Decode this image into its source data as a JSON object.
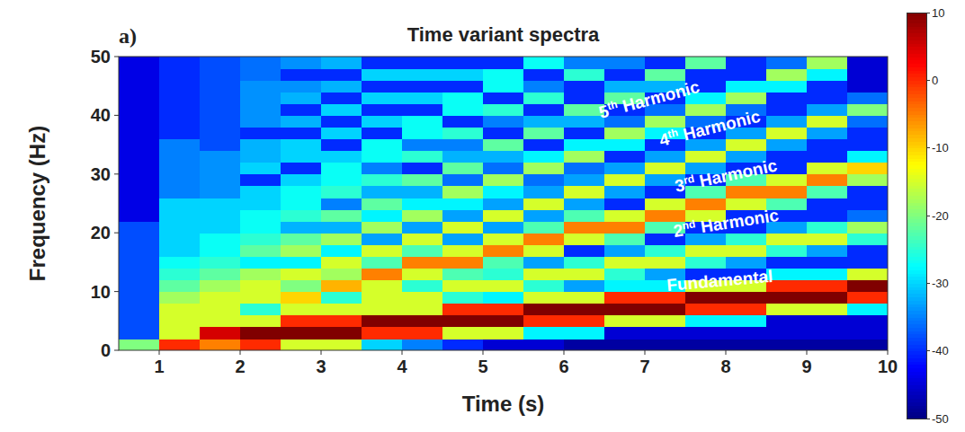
{
  "chart_data": {
    "type": "heatmap",
    "title": "Time variant spectra",
    "panel_label": "a)",
    "x_label": "Time (s)",
    "y_label": "Frequency (Hz)",
    "xlim": [
      0.5,
      10
    ],
    "ylim": [
      0,
      50
    ],
    "xticks": [
      1,
      2,
      3,
      4,
      5,
      6,
      7,
      8,
      9,
      10
    ],
    "yticks": [
      0,
      10,
      20,
      30,
      40,
      50
    ],
    "grid": false,
    "annotations": [
      "5th Harmonic",
      "4th Harmonic",
      "3rd Harmonic",
      "2nd Harmonic",
      "Fundamental"
    ],
    "x_bins": [
      0.5,
      1,
      1.5,
      2,
      2.5,
      3,
      3.5,
      4,
      4.5,
      5,
      5.5,
      6,
      6.5,
      7,
      7.5,
      8,
      8.5,
      9,
      9.5,
      10
    ],
    "y_bins": [
      0,
      2,
      4,
      6,
      8,
      10,
      12,
      14,
      16,
      18,
      20,
      22,
      24,
      26,
      28,
      30,
      32,
      34,
      36,
      38,
      40,
      42,
      44,
      46,
      48,
      50
    ],
    "cells": [
      [
        -20,
        -38,
        -38,
        -38,
        -38,
        -38,
        -38,
        -38,
        -38,
        -38,
        -38,
        -44,
        -44,
        -44,
        -44,
        -44,
        -44,
        -44,
        -44,
        -44,
        -44,
        -44,
        -44,
        -44,
        -44
      ],
      [
        0,
        -15,
        -15,
        -15,
        -18,
        -22,
        -25,
        -27,
        -30,
        -30,
        -30,
        -30,
        -30,
        -35,
        -35,
        -35,
        -35,
        -35,
        -40,
        -40,
        -40,
        -40,
        -40,
        -40,
        -40
      ],
      [
        -5,
        5,
        -15,
        -15,
        -15,
        -18,
        -22,
        -25,
        -27,
        -27,
        -30,
        -30,
        -30,
        -34,
        -34,
        -34,
        -34,
        -38,
        -38,
        -38,
        -38,
        -38,
        -38,
        -38,
        -38
      ],
      [
        0,
        10,
        -15,
        -25,
        -15,
        -15,
        -18,
        -28,
        -22,
        -25,
        -27,
        -27,
        -30,
        -30,
        -40,
        -30,
        -32,
        -32,
        -40,
        -34,
        -34,
        -34,
        -34,
        -36,
        -36
      ],
      [
        -15,
        10,
        0,
        -15,
        -10,
        -20,
        -15,
        -28,
        -18,
        -22,
        -32,
        -25,
        -27,
        -27,
        -30,
        -40,
        -30,
        -30,
        -40,
        -32,
        -40,
        -32,
        -34,
        -40,
        -34
      ],
      [
        -15,
        10,
        0,
        -15,
        -25,
        -8,
        -18,
        -15,
        -28,
        -18,
        -32,
        -22,
        -35,
        -25,
        -27,
        -27,
        -30,
        -40,
        -30,
        -40,
        -30,
        -40,
        -32,
        -40,
        -32
      ],
      [
        -30,
        0,
        10,
        -15,
        -15,
        -15,
        -5,
        -23,
        -15,
        -33,
        -18,
        -28,
        -22,
        -32,
        -25,
        -35,
        -27,
        -27,
        -40,
        -30,
        -40,
        -30,
        -40,
        -30,
        -40
      ],
      [
        -35,
        0,
        10,
        -15,
        -15,
        -25,
        -15,
        -5,
        -23,
        -15,
        -33,
        -18,
        -28,
        -32,
        -22,
        -40,
        -25,
        -35,
        -27,
        -27,
        -40,
        -30,
        -40,
        -30,
        -40
      ],
      [
        -40,
        -15,
        10,
        0,
        -25,
        -15,
        -23,
        -5,
        -15,
        -33,
        -15,
        -33,
        -28,
        -18,
        -36,
        -22,
        -32,
        -35,
        -25,
        -40,
        -27,
        -27,
        -40,
        -30,
        -40
      ],
      [
        -45,
        -15,
        10,
        0,
        -28,
        -15,
        -25,
        -23,
        -5,
        -15,
        -33,
        -15,
        -33,
        -28,
        -18,
        -36,
        -32,
        -22,
        -40,
        -35,
        -25,
        -40,
        -27,
        -27,
        -40
      ],
      [
        -45,
        -28,
        0,
        10,
        -15,
        -25,
        -15,
        -33,
        -15,
        -5,
        -23,
        -33,
        -15,
        -33,
        -36,
        -18,
        -28,
        -40,
        -22,
        -32,
        -40,
        -25,
        -35,
        -40,
        -27
      ],
      [
        -48,
        -28,
        0,
        10,
        -15,
        -33,
        -15,
        -25,
        -40,
        -15,
        -5,
        -23,
        -33,
        -15,
        -33,
        -36,
        -18,
        -28,
        -40,
        -32,
        -22,
        -40,
        -40,
        -25,
        -35
      ],
      [
        -48,
        -45,
        -15,
        10,
        0,
        -28,
        -25,
        -15,
        -33,
        -23,
        -5,
        -15,
        -40,
        -33,
        -15,
        -33,
        -40,
        -28,
        -18,
        -36,
        -40,
        -22,
        -32,
        -40,
        -35
      ],
      [
        -48,
        -45,
        -15,
        10,
        0,
        -28,
        -33,
        -15,
        -25,
        -40,
        -23,
        -5,
        -15,
        -40,
        -33,
        -15,
        -33,
        -40,
        -28,
        -18,
        -36,
        -40,
        -32,
        -22,
        -40
      ],
      [
        -48,
        -45,
        -28,
        0,
        10,
        -15,
        -40,
        -25,
        -15,
        -33,
        -40,
        -15,
        -5,
        -23,
        -40,
        -33,
        -15,
        -33,
        -40,
        -36,
        -18,
        -28,
        -40,
        -40,
        -22
      ],
      [
        -48,
        -45,
        -28,
        0,
        10,
        -15,
        -40,
        -33,
        -15,
        -25,
        -40,
        -40,
        -15,
        -5,
        -23,
        -40,
        -33,
        -15,
        -33,
        -40,
        -36,
        -18,
        -28,
        -40,
        -40
      ],
      [
        -48,
        -45,
        -45,
        -15,
        10,
        0,
        -28,
        -40,
        -25,
        -15,
        -33,
        -40,
        -23,
        -5,
        -15,
        -40,
        -40,
        -33,
        -15,
        -33,
        -40,
        -40,
        -28,
        -18,
        -36
      ],
      [
        -48,
        -45,
        -45,
        -15,
        10,
        0,
        -28,
        -40,
        -33,
        -15,
        -25,
        -40,
        -40,
        -23,
        -5,
        -15,
        -40,
        -40,
        -33,
        -15,
        -33,
        -40,
        -40,
        -28,
        -18
      ],
      [
        -48,
        -45,
        -45,
        -28,
        0,
        10,
        -15,
        -40,
        -40,
        -25,
        -18,
        -36,
        -40,
        -40,
        -18,
        -10,
        -28,
        -40,
        -40,
        -36,
        -20,
        -36,
        -45,
        -45,
        -45
      ]
    ],
    "colorbar": {
      "range": [
        -50,
        10
      ],
      "ticks": [
        10,
        0,
        -10,
        -20,
        -30,
        -40,
        -50
      ]
    }
  }
}
